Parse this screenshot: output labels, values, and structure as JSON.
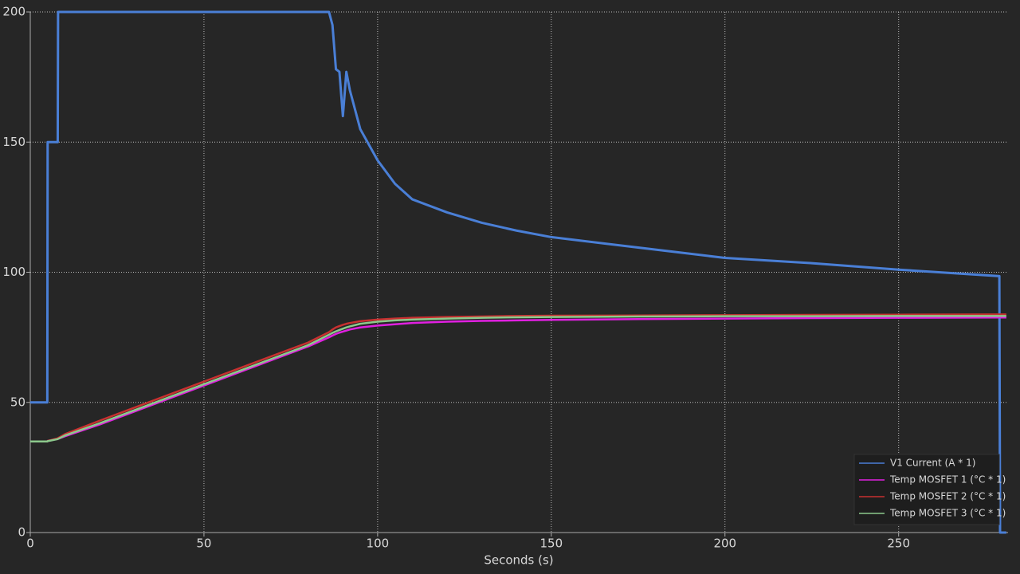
{
  "chart_data": {
    "type": "line",
    "x_label": "Seconds (s)",
    "x": [
      0,
      4.9,
      5,
      7.9,
      8,
      10,
      20,
      30,
      40,
      50,
      60,
      70,
      80,
      86,
      87,
      88,
      89,
      90,
      91,
      92,
      95,
      100,
      105,
      110,
      120,
      130,
      140,
      150,
      175,
      200,
      225,
      250,
      279,
      279.2,
      281
    ],
    "series": [
      {
        "name": "V1 Current (A * 1)",
        "color": "#4a7fd6",
        "values": [
          50,
          50,
          150,
          150,
          200,
          200,
          200,
          200,
          200,
          200,
          200,
          200,
          200,
          200,
          195,
          178,
          177,
          160,
          177,
          170,
          155,
          143,
          134,
          128,
          123,
          119,
          116,
          113.5,
          109.5,
          105.5,
          103.5,
          101,
          98.5,
          0,
          0
        ]
      },
      {
        "name": "Temp MOSFET 1 (°C * 1)",
        "color": "#e020e0",
        "values": [
          35,
          35,
          35.2,
          36,
          36,
          37,
          41.5,
          46.5,
          51.5,
          56.5,
          61.5,
          66.5,
          71.5,
          75,
          75.7,
          76.3,
          76.8,
          77.2,
          77.6,
          78,
          78.8,
          79.5,
          80,
          80.5,
          81,
          81.3,
          81.5,
          81.7,
          82,
          82.2,
          82.4,
          82.5,
          82.6,
          82.6,
          82.6
        ]
      },
      {
        "name": "Temp MOSFET 2 (°C * 1)",
        "color": "#c83030",
        "values": [
          35,
          35,
          35.2,
          36.2,
          36.3,
          37.8,
          43,
          48,
          53,
          58,
          63,
          68,
          73,
          77,
          78,
          78.8,
          79.3,
          79.8,
          80.2,
          80.5,
          81.2,
          81.8,
          82.2,
          82.5,
          82.8,
          83,
          83.2,
          83.3,
          83.4,
          83.5,
          83.6,
          83.7,
          83.8,
          83.8,
          83.8
        ]
      },
      {
        "name": "Temp MOSFET 3 (°C * 1)",
        "color": "#8cc98c",
        "values": [
          35,
          35,
          35.1,
          35.9,
          36,
          37.3,
          42,
          47,
          52,
          57,
          62,
          67,
          72,
          76,
          76.7,
          77.3,
          77.8,
          78.3,
          78.8,
          79.2,
          80.2,
          81,
          81.5,
          81.8,
          82.2,
          82.5,
          82.7,
          82.8,
          83,
          83.1,
          83.1,
          83.2,
          83.2,
          83.2,
          83.2
        ]
      }
    ],
    "xlim": [
      0,
      281.5
    ],
    "xticks": [
      0,
      50,
      100,
      150,
      200,
      250
    ],
    "ylim": [
      0,
      200
    ],
    "yticks": [
      0,
      50,
      100,
      150,
      200
    ],
    "grid": true,
    "legend": "lower right"
  }
}
